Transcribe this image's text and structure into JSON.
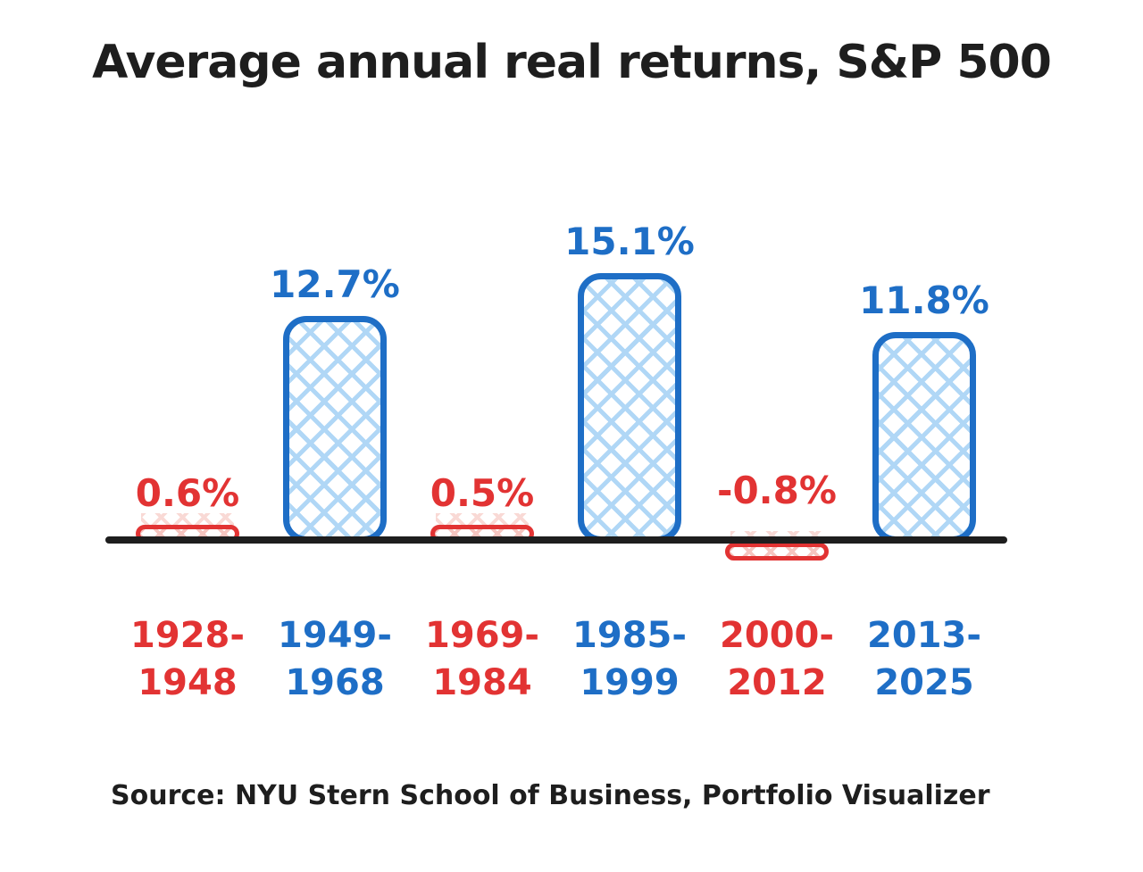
{
  "page": {
    "title": "Average annual real returns, S&P 500",
    "source": "Source: NYU Stern School of Business, Portfolio Visualizer"
  },
  "colors": {
    "text": "#1e1e1e",
    "axis": "#1e1e1e",
    "blue": "#1e6ec6",
    "blue_hatch": "#b0d7f6",
    "red": "#e23333",
    "red_hatch": "#f6c5c0"
  },
  "chart_data": {
    "type": "bar",
    "title": "Average annual real returns, S&P 500",
    "xlabel": "",
    "ylabel": "",
    "ylim": [
      -2,
      17
    ],
    "grid": false,
    "legend": "none",
    "categories": [
      "1928-1948",
      "1949-1968",
      "1969-1984",
      "1985-1999",
      "2000-2012",
      "2013-2025"
    ],
    "values": [
      0.6,
      12.7,
      0.5,
      15.1,
      -0.8,
      11.8
    ],
    "bars": [
      {
        "period_line1": "1928-",
        "period_line2": "1948",
        "value": 0.6,
        "label": "0.6%",
        "color": "red"
      },
      {
        "period_line1": "1949-",
        "period_line2": "1968",
        "value": 12.7,
        "label": "12.7%",
        "color": "blue"
      },
      {
        "period_line1": "1969-",
        "period_line2": "1984",
        "value": 0.5,
        "label": "0.5%",
        "color": "red"
      },
      {
        "period_line1": "1985-",
        "period_line2": "1999",
        "value": 15.1,
        "label": "15.1%",
        "color": "blue"
      },
      {
        "period_line1": "2000-",
        "period_line2": "2012",
        "value": -0.8,
        "label": "-0.8%",
        "color": "red"
      },
      {
        "period_line1": "2013-",
        "period_line2": "2025",
        "value": 11.8,
        "label": "11.8%",
        "color": "blue"
      }
    ]
  }
}
